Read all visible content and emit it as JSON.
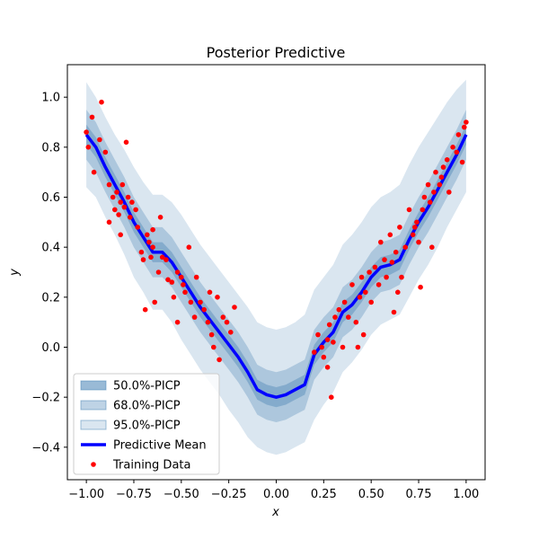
{
  "chart_data": {
    "type": "line",
    "title": "Posterior Predictive",
    "xlabel": "x",
    "ylabel": "y",
    "xlim": [
      -1.1,
      1.1
    ],
    "ylim": [
      -0.53,
      1.13
    ],
    "xticks": [
      -1.0,
      -0.75,
      -0.5,
      -0.25,
      0.0,
      0.25,
      0.5,
      0.75,
      1.0
    ],
    "xtick_labels": [
      "−1.00",
      "−0.75",
      "−0.50",
      "−0.25",
      "0.00",
      "0.25",
      "0.50",
      "0.75",
      "1.00"
    ],
    "yticks": [
      -0.4,
      -0.2,
      0.0,
      0.2,
      0.4,
      0.6,
      0.8,
      1.0
    ],
    "ytick_labels": [
      "−0.4",
      "−0.2",
      "0.0",
      "0.2",
      "0.4",
      "0.6",
      "0.8",
      "1.0"
    ],
    "grid": false,
    "legend_position": "lower-left",
    "colors": {
      "band": "#4682b4",
      "mean": "#0000ff",
      "points": "#ff0000"
    },
    "series": [
      {
        "name": "Predictive Mean",
        "x": [
          -1.0,
          -0.95,
          -0.9,
          -0.85,
          -0.8,
          -0.75,
          -0.7,
          -0.65,
          -0.6,
          -0.55,
          -0.5,
          -0.45,
          -0.4,
          -0.35,
          -0.3,
          -0.25,
          -0.2,
          -0.15,
          -0.1,
          -0.05,
          0.0,
          0.05,
          0.1,
          0.15,
          0.2,
          0.25,
          0.3,
          0.35,
          0.4,
          0.45,
          0.5,
          0.55,
          0.6,
          0.65,
          0.7,
          0.75,
          0.8,
          0.85,
          0.9,
          0.95,
          1.0
        ],
        "y": [
          0.85,
          0.8,
          0.72,
          0.65,
          0.58,
          0.5,
          0.44,
          0.38,
          0.38,
          0.34,
          0.28,
          0.22,
          0.16,
          0.11,
          0.06,
          0.01,
          -0.04,
          -0.1,
          -0.17,
          -0.19,
          -0.2,
          -0.19,
          -0.17,
          -0.15,
          -0.03,
          0.02,
          0.06,
          0.14,
          0.17,
          0.22,
          0.28,
          0.32,
          0.33,
          0.35,
          0.43,
          0.5,
          0.56,
          0.63,
          0.7,
          0.77,
          0.85
        ]
      }
    ],
    "bands": [
      {
        "name": "50.0%-PICP",
        "x": [
          -1.0,
          -0.95,
          -0.9,
          -0.85,
          -0.8,
          -0.75,
          -0.7,
          -0.65,
          -0.6,
          -0.55,
          -0.5,
          -0.45,
          -0.4,
          -0.35,
          -0.3,
          -0.25,
          -0.2,
          -0.15,
          -0.1,
          -0.05,
          0.0,
          0.05,
          0.1,
          0.15,
          0.2,
          0.25,
          0.3,
          0.35,
          0.4,
          0.45,
          0.5,
          0.55,
          0.6,
          0.65,
          0.7,
          0.75,
          0.8,
          0.85,
          0.9,
          0.95,
          1.0
        ],
        "lower": [
          0.81,
          0.76,
          0.68,
          0.61,
          0.54,
          0.46,
          0.4,
          0.34,
          0.34,
          0.3,
          0.24,
          0.18,
          0.12,
          0.07,
          0.02,
          -0.03,
          -0.08,
          -0.14,
          -0.21,
          -0.23,
          -0.24,
          -0.23,
          -0.21,
          -0.19,
          -0.07,
          -0.02,
          0.02,
          0.1,
          0.13,
          0.18,
          0.24,
          0.28,
          0.29,
          0.31,
          0.39,
          0.46,
          0.52,
          0.59,
          0.66,
          0.73,
          0.81
        ],
        "upper": [
          0.89,
          0.84,
          0.76,
          0.69,
          0.62,
          0.54,
          0.48,
          0.42,
          0.42,
          0.38,
          0.32,
          0.26,
          0.2,
          0.15,
          0.1,
          0.05,
          0.0,
          -0.06,
          -0.13,
          -0.15,
          -0.16,
          -0.15,
          -0.13,
          -0.11,
          0.01,
          0.06,
          0.1,
          0.18,
          0.21,
          0.26,
          0.32,
          0.36,
          0.37,
          0.39,
          0.47,
          0.54,
          0.6,
          0.67,
          0.74,
          0.81,
          0.89
        ]
      },
      {
        "name": "68.0%-PICP",
        "x": [
          -1.0,
          -0.95,
          -0.9,
          -0.85,
          -0.8,
          -0.75,
          -0.7,
          -0.65,
          -0.6,
          -0.55,
          -0.5,
          -0.45,
          -0.4,
          -0.35,
          -0.3,
          -0.25,
          -0.2,
          -0.15,
          -0.1,
          -0.05,
          0.0,
          0.05,
          0.1,
          0.15,
          0.2,
          0.25,
          0.3,
          0.35,
          0.4,
          0.45,
          0.5,
          0.55,
          0.6,
          0.65,
          0.7,
          0.75,
          0.8,
          0.85,
          0.9,
          0.95,
          1.0
        ],
        "lower": [
          0.75,
          0.7,
          0.62,
          0.55,
          0.48,
          0.4,
          0.34,
          0.28,
          0.28,
          0.24,
          0.18,
          0.12,
          0.06,
          0.01,
          -0.04,
          -0.09,
          -0.14,
          -0.2,
          -0.27,
          -0.29,
          -0.3,
          -0.29,
          -0.27,
          -0.25,
          -0.13,
          -0.08,
          -0.04,
          0.04,
          0.07,
          0.12,
          0.18,
          0.22,
          0.23,
          0.25,
          0.33,
          0.4,
          0.46,
          0.53,
          0.6,
          0.67,
          0.75
        ],
        "upper": [
          0.95,
          0.9,
          0.82,
          0.75,
          0.68,
          0.6,
          0.54,
          0.48,
          0.48,
          0.44,
          0.38,
          0.32,
          0.26,
          0.21,
          0.16,
          0.11,
          0.06,
          0.0,
          -0.07,
          -0.09,
          -0.1,
          -0.09,
          -0.07,
          -0.05,
          0.07,
          0.12,
          0.16,
          0.24,
          0.27,
          0.32,
          0.38,
          0.42,
          0.43,
          0.45,
          0.53,
          0.6,
          0.66,
          0.73,
          0.8,
          0.87,
          0.95
        ]
      },
      {
        "name": "95.0%-PICP",
        "x": [
          -1.0,
          -0.95,
          -0.9,
          -0.85,
          -0.8,
          -0.75,
          -0.7,
          -0.65,
          -0.6,
          -0.55,
          -0.5,
          -0.45,
          -0.4,
          -0.35,
          -0.3,
          -0.25,
          -0.2,
          -0.15,
          -0.1,
          -0.05,
          0.0,
          0.05,
          0.1,
          0.15,
          0.2,
          0.25,
          0.3,
          0.35,
          0.4,
          0.45,
          0.5,
          0.55,
          0.6,
          0.65,
          0.7,
          0.75,
          0.8,
          0.85,
          0.9,
          0.95,
          1.0
        ],
        "lower": [
          0.64,
          0.6,
          0.52,
          0.45,
          0.37,
          0.28,
          0.22,
          0.15,
          0.15,
          0.1,
          0.03,
          -0.03,
          -0.09,
          -0.14,
          -0.19,
          -0.25,
          -0.3,
          -0.36,
          -0.4,
          -0.42,
          -0.43,
          -0.42,
          -0.4,
          -0.38,
          -0.29,
          -0.23,
          -0.18,
          -0.1,
          -0.06,
          -0.01,
          0.05,
          0.09,
          0.11,
          0.13,
          0.2,
          0.27,
          0.33,
          0.4,
          0.48,
          0.55,
          0.62
        ],
        "upper": [
          1.06,
          1.0,
          0.92,
          0.85,
          0.79,
          0.72,
          0.66,
          0.61,
          0.61,
          0.58,
          0.53,
          0.47,
          0.41,
          0.36,
          0.31,
          0.26,
          0.21,
          0.16,
          0.1,
          0.08,
          0.07,
          0.08,
          0.1,
          0.13,
          0.23,
          0.28,
          0.33,
          0.41,
          0.45,
          0.5,
          0.56,
          0.6,
          0.62,
          0.65,
          0.73,
          0.8,
          0.86,
          0.92,
          0.98,
          1.03,
          1.07
        ]
      }
    ],
    "training_data": {
      "name": "Training Data",
      "x": [
        -1.0,
        -0.99,
        -0.97,
        -0.96,
        -0.93,
        -0.92,
        -0.9,
        -0.88,
        -0.86,
        -0.85,
        -0.84,
        -0.83,
        -0.82,
        -0.81,
        -0.8,
        -0.79,
        -0.78,
        -0.77,
        -0.76,
        -0.74,
        -0.73,
        -0.71,
        -0.7,
        -0.69,
        -0.68,
        -0.67,
        -0.66,
        -0.65,
        -0.64,
        -0.62,
        -0.6,
        -0.58,
        -0.57,
        -0.55,
        -0.54,
        -0.52,
        -0.5,
        -0.49,
        -0.48,
        -0.46,
        -0.45,
        -0.43,
        -0.42,
        -0.4,
        -0.38,
        -0.36,
        -0.34,
        -0.33,
        -0.31,
        -0.3,
        -0.28,
        -0.26,
        -0.24,
        -0.22,
        -0.52,
        -0.65,
        -0.61,
        -0.88,
        -0.82,
        -0.35,
        0.2,
        0.22,
        0.24,
        0.25,
        0.27,
        0.28,
        0.3,
        0.31,
        0.33,
        0.35,
        0.36,
        0.38,
        0.4,
        0.42,
        0.44,
        0.45,
        0.47,
        0.49,
        0.5,
        0.52,
        0.54,
        0.55,
        0.57,
        0.58,
        0.6,
        0.61,
        0.63,
        0.65,
        0.66,
        0.68,
        0.7,
        0.72,
        0.73,
        0.74,
        0.75,
        0.77,
        0.78,
        0.8,
        0.81,
        0.83,
        0.84,
        0.86,
        0.87,
        0.88,
        0.9,
        0.91,
        0.93,
        0.95,
        0.96,
        0.98,
        0.99,
        1.0,
        0.29,
        0.43,
        0.62,
        0.76,
        0.27,
        0.64,
        0.46,
        0.82
      ],
      "y": [
        0.86,
        0.8,
        0.92,
        0.7,
        0.83,
        0.98,
        0.78,
        0.65,
        0.6,
        0.55,
        0.62,
        0.53,
        0.58,
        0.65,
        0.56,
        0.82,
        0.6,
        0.52,
        0.58,
        0.55,
        0.48,
        0.38,
        0.35,
        0.15,
        0.45,
        0.42,
        0.36,
        0.4,
        0.18,
        0.3,
        0.36,
        0.35,
        0.27,
        0.26,
        0.2,
        0.3,
        0.28,
        0.25,
        0.22,
        0.4,
        0.18,
        0.12,
        0.28,
        0.18,
        0.15,
        0.1,
        0.05,
        0.0,
        0.2,
        -0.05,
        0.12,
        0.1,
        0.06,
        0.16,
        0.1,
        0.47,
        0.52,
        0.5,
        0.45,
        0.22,
        -0.02,
        0.05,
        0.0,
        -0.04,
        0.03,
        0.09,
        0.02,
        0.12,
        0.15,
        0.0,
        0.18,
        0.12,
        0.25,
        0.1,
        0.2,
        0.28,
        0.22,
        0.3,
        0.18,
        0.32,
        0.25,
        0.42,
        0.35,
        0.28,
        0.45,
        0.34,
        0.38,
        0.48,
        0.28,
        0.4,
        0.55,
        0.45,
        0.48,
        0.5,
        0.42,
        0.55,
        0.6,
        0.65,
        0.58,
        0.62,
        0.7,
        0.65,
        0.68,
        0.72,
        0.75,
        0.62,
        0.8,
        0.78,
        0.85,
        0.74,
        0.88,
        0.9,
        -0.2,
        0.0,
        0.14,
        0.24,
        -0.08,
        0.22,
        0.05,
        0.4
      ]
    },
    "legend": [
      "50.0%-PICP",
      "68.0%-PICP",
      "95.0%-PICP",
      "Predictive Mean",
      "Training Data"
    ]
  }
}
